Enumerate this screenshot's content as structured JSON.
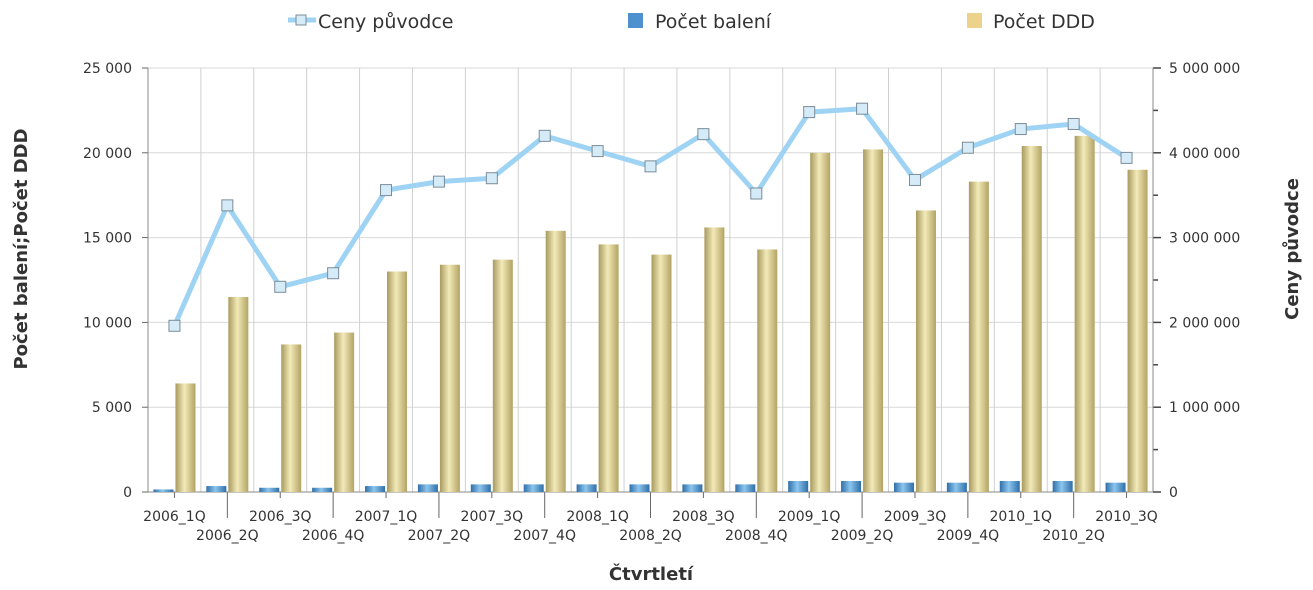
{
  "chart_data": {
    "type": "bar",
    "categories": [
      "2006_1Q",
      "2006_2Q",
      "2006_3Q",
      "2006_4Q",
      "2007_1Q",
      "2007_2Q",
      "2007_3Q",
      "2007_4Q",
      "2008_1Q",
      "2008_2Q",
      "2008_3Q",
      "2008_4Q",
      "2009_1Q",
      "2009_2Q",
      "2009_3Q",
      "2009_4Q",
      "2010_1Q",
      "2010_2Q",
      "2010_3Q"
    ],
    "xlabel": "Čtvrtletí",
    "ylabel": "Počet balení;Počet DDD",
    "y2label": "Ceny původce",
    "ylim": [
      0,
      25000
    ],
    "y2lim": [
      0,
      5000000
    ],
    "yticks": [
      "0",
      "5 000",
      "10 000",
      "15 000",
      "20 000",
      "25 000"
    ],
    "y2ticks": [
      "0",
      "1 000 000",
      "2 000 000",
      "3 000 000",
      "4 000 000",
      "5 000 000"
    ],
    "grid": true,
    "legend_position": "top",
    "series": [
      {
        "name": "Ceny původce",
        "type": "line",
        "axis": "right",
        "color": "#9fd3f3",
        "values": [
          1960000,
          3380000,
          2420000,
          2580000,
          3560000,
          3660000,
          3700000,
          4200000,
          4020000,
          3840000,
          4220000,
          3520000,
          4480000,
          4520000,
          3680000,
          4060000,
          4280000,
          4340000,
          3940000
        ]
      },
      {
        "name": "Počet balení",
        "type": "bar",
        "axis": "left",
        "color": "#4f90cf",
        "values": [
          150,
          350,
          250,
          250,
          350,
          450,
          450,
          450,
          450,
          450,
          450,
          450,
          650,
          650,
          550,
          550,
          650,
          650,
          550
        ]
      },
      {
        "name": "Počet DDD",
        "type": "bar",
        "axis": "left",
        "color": "#ecd28a",
        "values": [
          6400,
          11500,
          8700,
          9400,
          13000,
          13400,
          13700,
          15400,
          14600,
          14000,
          15600,
          14300,
          20000,
          20200,
          16600,
          18300,
          20400,
          21000,
          19000
        ]
      }
    ]
  }
}
